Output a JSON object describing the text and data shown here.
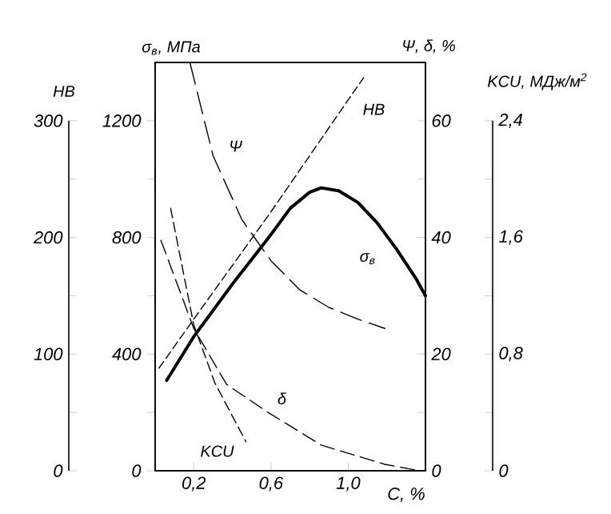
{
  "chart_data": [
    {
      "type": "line",
      "xlabel": "C, %",
      "ylabel": "σ$_{в}$, МПа",
      "y2label": "Ψ, δ, %",
      "y3label": "HB",
      "xlim": [
        0,
        1.4
      ],
      "xticks": [
        {
          "value": 0.2,
          "label": "0,2"
        },
        {
          "value": 0.6,
          "label": "0,6"
        },
        {
          "value": 1.0,
          "label": "1,0"
        }
      ],
      "ylim": [
        0,
        1400
      ],
      "yticks": [
        0,
        {
          "value": 200,
          "label": null
        },
        400,
        {
          "value": 600,
          "label": null
        },
        800,
        {
          "value": 1000,
          "label": null
        },
        1200
      ],
      "y2lim": [
        0,
        70
      ],
      "y2ticks": [
        0,
        {
          "value": 10,
          "label": null
        },
        20,
        {
          "value": 30,
          "label": null
        },
        40,
        {
          "value": 50,
          "label": null
        },
        60
      ],
      "y3lim": [
        0,
        350
      ],
      "y3ticks": [
        0,
        {
          "value": 50,
          "label": null
        },
        100,
        {
          "value": 150,
          "label": null
        },
        200,
        {
          "value": 250,
          "label": null
        },
        300
      ],
      "marker": "none",
      "series": [
        {
          "name": "σ$_{в}$",
          "color": "#000000",
          "line_style": "solid",
          "x": [
            0.06,
            0.2,
            0.4,
            0.6,
            0.7,
            0.8,
            0.86,
            0.95,
            1.05,
            1.15,
            1.25,
            1.35,
            1.4
          ],
          "values": [
            310,
            460,
            640,
            810,
            900,
            955,
            970,
            960,
            920,
            850,
            760,
            660,
            600
          ]
        },
        {
          "name": "HB",
          "color": "#000000",
          "axis": "y3",
          "line_style": "dashed",
          "x": [
            0.02,
            0.2,
            0.6,
            1.0,
            1.08
          ],
          "values": [
            88,
            130,
            222,
            318,
            337
          ]
        },
        {
          "name": "Ψ",
          "color": "#000000",
          "axis": "y2",
          "line_style": "dashed",
          "x": [
            0.18,
            0.3,
            0.45,
            0.6,
            0.75,
            0.9,
            1.05,
            1.19
          ],
          "values": [
            70,
            54,
            43,
            36,
            31,
            28,
            26,
            24.4
          ]
        },
        {
          "name": "δ",
          "color": "#000000",
          "axis": "y2",
          "line_style": "dashed",
          "x": [
            0.03,
            0.2,
            0.37,
            0.59,
            0.86,
            1.19,
            1.37
          ],
          "values": [
            39.5,
            24.4,
            14.8,
            9.9,
            4.4,
            1.1,
            0
          ]
        }
      ]
    },
    {
      "type": "line",
      "ylabel": "KCU, МДж/м$^{2}$",
      "xlim": [
        0,
        1.4
      ],
      "ylim": [
        0,
        2.8
      ],
      "yticks": [
        0,
        {
          "value": 0.4,
          "label": null
        },
        {
          "value": 0.8,
          "label": "0,8"
        },
        {
          "value": 1.2,
          "label": null
        },
        {
          "value": 1.6,
          "label": "1,6"
        },
        {
          "value": 2.0,
          "label": null
        },
        {
          "value": 2.4,
          "label": "2,4"
        }
      ],
      "tick_labels": "y",
      "marker": "none",
      "series": [
        {
          "name": "KCU",
          "color": "#000000",
          "line_style": "dashed",
          "x": [
            0.08,
            0.2,
            0.31,
            0.47
          ],
          "values": [
            1.8,
            1.0,
            0.6,
            0.2
          ]
        }
      ]
    }
  ]
}
